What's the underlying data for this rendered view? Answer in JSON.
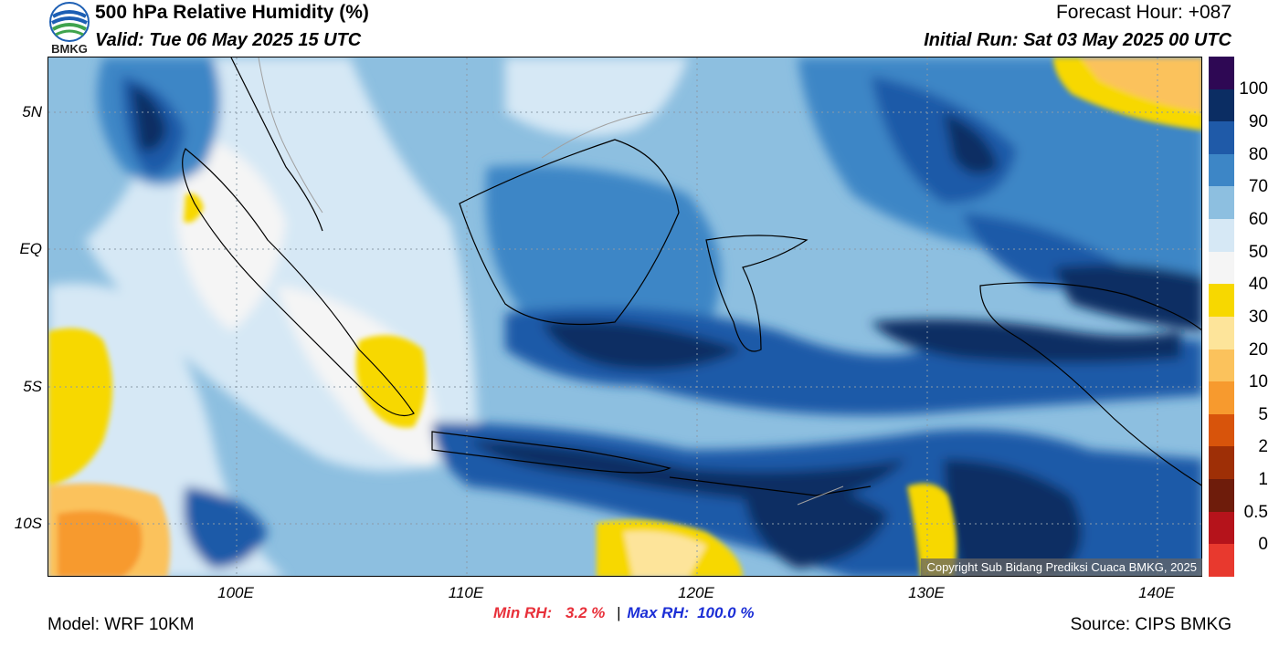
{
  "header": {
    "title": "500 hPa Relative Humidity (%)",
    "valid": "Valid: Tue 06 May 2025 15 UTC",
    "forecast_hour": "Forecast Hour: +087",
    "initial_run": "Initial Run: Sat 03 May 2025 00 UTC"
  },
  "logo": {
    "text": "BMKG"
  },
  "axes": {
    "lat_ticks": [
      "5N",
      "EQ",
      "5S",
      "10S"
    ],
    "lon_ticks": [
      "100E",
      "110E",
      "120E",
      "130E",
      "140E"
    ]
  },
  "colorbar": {
    "labels": [
      "100",
      "90",
      "80",
      "70",
      "60",
      "50",
      "40",
      "30",
      "20",
      "10",
      "5",
      "2",
      "1",
      "0.5",
      "0"
    ],
    "colors": [
      "#2e0854",
      "#0b2d63",
      "#1f5aa8",
      "#3d86c6",
      "#8dbfe0",
      "#d6e8f5",
      "#f5f5f5",
      "#f7d800",
      "#fde49a",
      "#fbc25c",
      "#f79a2e",
      "#d8540b",
      "#9e2f06",
      "#6e1c0b",
      "#b5131b",
      "#e8392e"
    ]
  },
  "stats": {
    "min_label": "Min RH:",
    "min_value": "3.2 %",
    "sep": "|",
    "max_label": "Max RH:",
    "max_value": "100.0 %"
  },
  "footer": {
    "model": "Model: WRF 10KM",
    "source": "Source: CIPS BMKG",
    "copyright": "Copyright Sub Bidang Prediksi Cuaca BMKG, 2025"
  }
}
